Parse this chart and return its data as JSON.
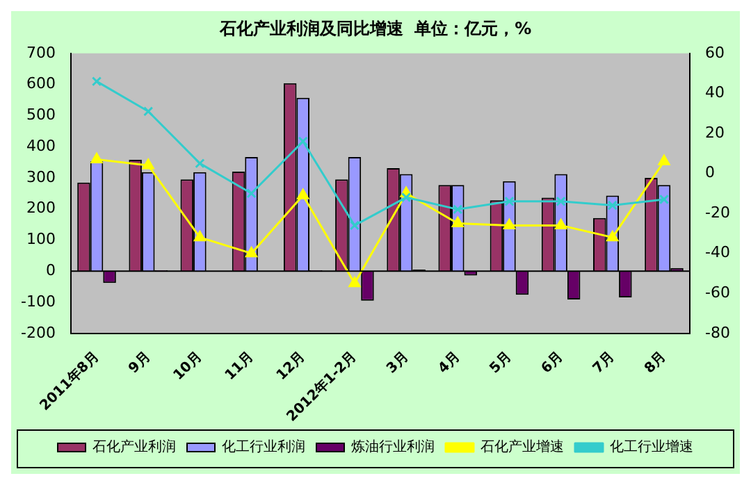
{
  "chart_data": {
    "type": "bar",
    "title": "石化产业利润及同比增速  单位：亿元，%",
    "categories": [
      "2011年8月",
      "9月",
      "10月",
      "11月",
      "12月",
      "2012年1-2月",
      "3月",
      "4月",
      "5月",
      "6月",
      "7月",
      "8月"
    ],
    "series": [
      {
        "name": "石化产业利润",
        "color": "#993366",
        "values": [
          285,
          358,
          295,
          320,
          604,
          295,
          331,
          277,
          228,
          236,
          171,
          300
        ]
      },
      {
        "name": "化工行业利润",
        "color": "#9999ff",
        "values": [
          353,
          318,
          318,
          367,
          557,
          367,
          312,
          277,
          289,
          312,
          243,
          277
        ]
      },
      {
        "name": "炼油行业利润",
        "color": "#660066",
        "values": [
          -38,
          3,
          0,
          0,
          3,
          -95,
          5,
          -14,
          -76,
          -91,
          -84,
          10
        ]
      },
      {
        "name": "石化产业增速",
        "type": "line",
        "axis": "y2",
        "color": "#ffff00",
        "marker": "triangle",
        "values": [
          7,
          4,
          -32,
          -40,
          -11,
          -55,
          -10,
          -25,
          -26,
          -26,
          -32,
          6
        ]
      },
      {
        "name": "化工行业增速",
        "type": "line",
        "axis": "y2",
        "color": "#33cccc",
        "marker": "cross",
        "values": [
          46,
          31,
          5,
          -10,
          16,
          -26,
          -12,
          -18,
          -14,
          -14,
          -16,
          -13
        ]
      }
    ],
    "ylim": [
      -200,
      700
    ],
    "yticks": [
      -200,
      -100,
      0,
      100,
      200,
      300,
      400,
      500,
      600,
      700
    ],
    "y2lim": [
      -80,
      60
    ],
    "y2ticks": [
      -80,
      -60,
      -40,
      -20,
      0,
      20,
      40,
      60
    ],
    "legend": "bottom"
  }
}
